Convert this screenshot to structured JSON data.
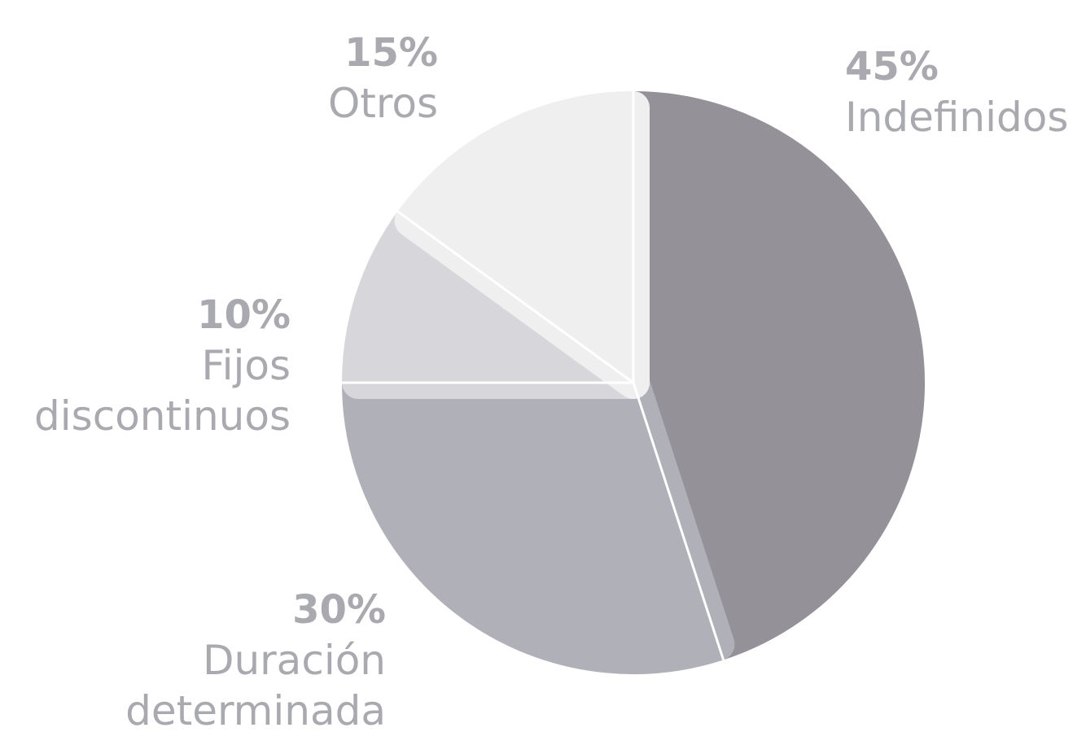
{
  "chart_data": {
    "type": "pie",
    "categories": [
      "Indefinidos",
      "Duración determinada",
      "Fijos discontinuos",
      "Otros"
    ],
    "values": [
      45,
      30,
      10,
      15
    ],
    "value_labels": [
      "45%",
      "30%",
      "10%",
      "15%"
    ],
    "colors": [
      "#959199",
      "#b0b0b8",
      "#d6d6db",
      "#efeff0"
    ]
  }
}
